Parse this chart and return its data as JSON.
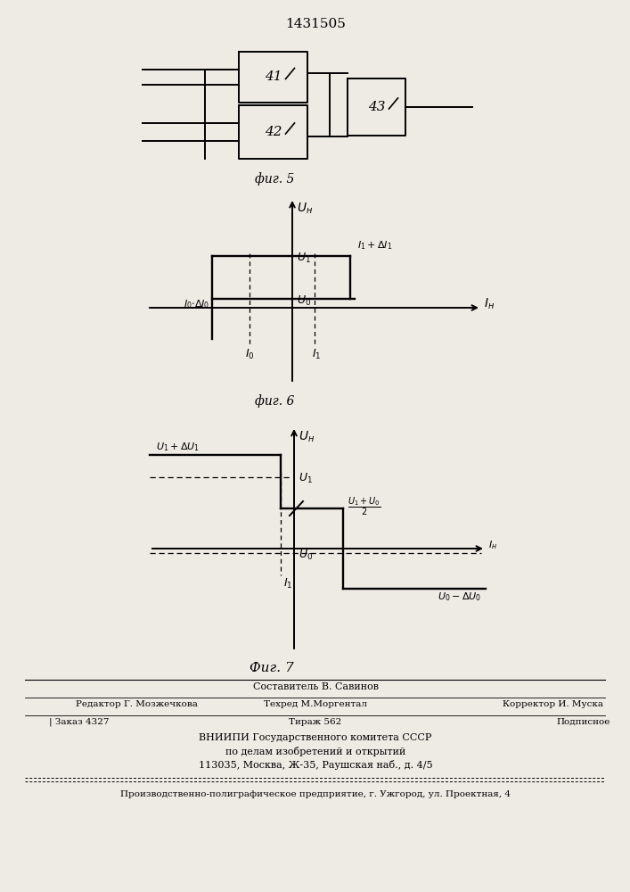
{
  "title": "1431505",
  "bg_color": "#eeebe5",
  "fig5_caption": "фиг. 5",
  "fig6_caption": "фиг. 6",
  "fig7_caption": "Фиг. 7"
}
